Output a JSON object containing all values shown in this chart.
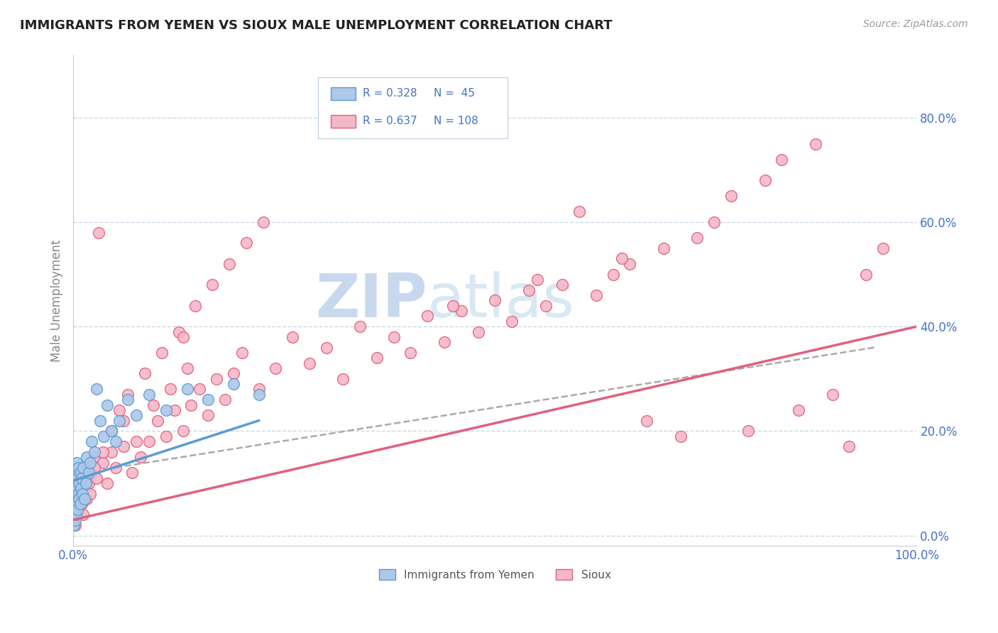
{
  "title": "IMMIGRANTS FROM YEMEN VS SIOUX MALE UNEMPLOYMENT CORRELATION CHART",
  "source_text": "Source: ZipAtlas.com",
  "ylabel": "Male Unemployment",
  "xlim": [
    0.0,
    1.0
  ],
  "ylim": [
    -0.02,
    0.92
  ],
  "ytick_labels": [
    "0.0%",
    "20.0%",
    "40.0%",
    "60.0%",
    "80.0%"
  ],
  "ytick_values": [
    0.0,
    0.2,
    0.4,
    0.6,
    0.8
  ],
  "xtick_labels": [
    "0.0%",
    "100.0%"
  ],
  "xtick_values": [
    0.0,
    1.0
  ],
  "series1_label": "Immigrants from Yemen",
  "series1_R": 0.328,
  "series1_N": 45,
  "series1_color": "#adc8e8",
  "series1_edge_color": "#5b9bd5",
  "series2_label": "Sioux",
  "series2_R": 0.637,
  "series2_N": 108,
  "series2_color": "#f4b8c8",
  "series2_edge_color": "#e06080",
  "legend_color": "#4472c4",
  "watermark_zip": "ZIP",
  "watermark_atlas": "atlas",
  "watermark_color": "#c8d8ee",
  "background_color": "#ffffff",
  "grid_color": "#c8d8e8",
  "title_color": "#222222",
  "axis_label_color": "#4472c4",
  "regression1_color": "#5b9bd5",
  "regression2_color": "#e06080",
  "series1_x": [
    0.001,
    0.001,
    0.002,
    0.002,
    0.002,
    0.003,
    0.003,
    0.003,
    0.004,
    0.004,
    0.004,
    0.005,
    0.005,
    0.006,
    0.006,
    0.007,
    0.007,
    0.008,
    0.008,
    0.009,
    0.01,
    0.011,
    0.012,
    0.013,
    0.015,
    0.016,
    0.018,
    0.02,
    0.022,
    0.025,
    0.028,
    0.032,
    0.036,
    0.04,
    0.045,
    0.05,
    0.055,
    0.065,
    0.075,
    0.09,
    0.11,
    0.135,
    0.16,
    0.19,
    0.22
  ],
  "series1_y": [
    0.02,
    0.05,
    0.03,
    0.07,
    0.1,
    0.04,
    0.08,
    0.12,
    0.06,
    0.09,
    0.14,
    0.05,
    0.11,
    0.08,
    0.13,
    0.07,
    0.1,
    0.06,
    0.12,
    0.09,
    0.11,
    0.08,
    0.13,
    0.07,
    0.1,
    0.15,
    0.12,
    0.14,
    0.18,
    0.16,
    0.28,
    0.22,
    0.19,
    0.25,
    0.2,
    0.18,
    0.22,
    0.26,
    0.23,
    0.27,
    0.24,
    0.28,
    0.26,
    0.29,
    0.27
  ],
  "series2_x": [
    0.001,
    0.001,
    0.002,
    0.002,
    0.002,
    0.003,
    0.003,
    0.004,
    0.004,
    0.005,
    0.005,
    0.006,
    0.007,
    0.007,
    0.008,
    0.009,
    0.01,
    0.011,
    0.012,
    0.013,
    0.015,
    0.016,
    0.018,
    0.02,
    0.022,
    0.025,
    0.028,
    0.03,
    0.035,
    0.04,
    0.045,
    0.05,
    0.06,
    0.07,
    0.08,
    0.09,
    0.1,
    0.11,
    0.12,
    0.13,
    0.14,
    0.15,
    0.16,
    0.17,
    0.18,
    0.19,
    0.2,
    0.22,
    0.24,
    0.26,
    0.28,
    0.3,
    0.32,
    0.34,
    0.36,
    0.38,
    0.4,
    0.42,
    0.44,
    0.46,
    0.48,
    0.5,
    0.52,
    0.54,
    0.56,
    0.58,
    0.6,
    0.62,
    0.64,
    0.66,
    0.68,
    0.7,
    0.72,
    0.74,
    0.76,
    0.78,
    0.8,
    0.82,
    0.84,
    0.86,
    0.88,
    0.9,
    0.92,
    0.94,
    0.96,
    0.06,
    0.075,
    0.095,
    0.115,
    0.135,
    0.035,
    0.045,
    0.055,
    0.065,
    0.085,
    0.105,
    0.125,
    0.145,
    0.165,
    0.185,
    0.205,
    0.225,
    0.045,
    0.13,
    0.025,
    0.45,
    0.55,
    0.65
  ],
  "series2_y": [
    0.03,
    0.06,
    0.05,
    0.08,
    0.02,
    0.07,
    0.1,
    0.04,
    0.09,
    0.06,
    0.12,
    0.05,
    0.08,
    0.13,
    0.07,
    0.1,
    0.06,
    0.11,
    0.04,
    0.09,
    0.13,
    0.07,
    0.1,
    0.08,
    0.12,
    0.15,
    0.11,
    0.58,
    0.14,
    0.1,
    0.16,
    0.13,
    0.17,
    0.12,
    0.15,
    0.18,
    0.22,
    0.19,
    0.24,
    0.2,
    0.25,
    0.28,
    0.23,
    0.3,
    0.26,
    0.31,
    0.35,
    0.28,
    0.32,
    0.38,
    0.33,
    0.36,
    0.3,
    0.4,
    0.34,
    0.38,
    0.35,
    0.42,
    0.37,
    0.43,
    0.39,
    0.45,
    0.41,
    0.47,
    0.44,
    0.48,
    0.62,
    0.46,
    0.5,
    0.52,
    0.22,
    0.55,
    0.19,
    0.57,
    0.6,
    0.65,
    0.2,
    0.68,
    0.72,
    0.24,
    0.75,
    0.27,
    0.17,
    0.5,
    0.55,
    0.22,
    0.18,
    0.25,
    0.28,
    0.32,
    0.16,
    0.2,
    0.24,
    0.27,
    0.31,
    0.35,
    0.39,
    0.44,
    0.48,
    0.52,
    0.56,
    0.6,
    0.2,
    0.38,
    0.13,
    0.44,
    0.49,
    0.53
  ]
}
